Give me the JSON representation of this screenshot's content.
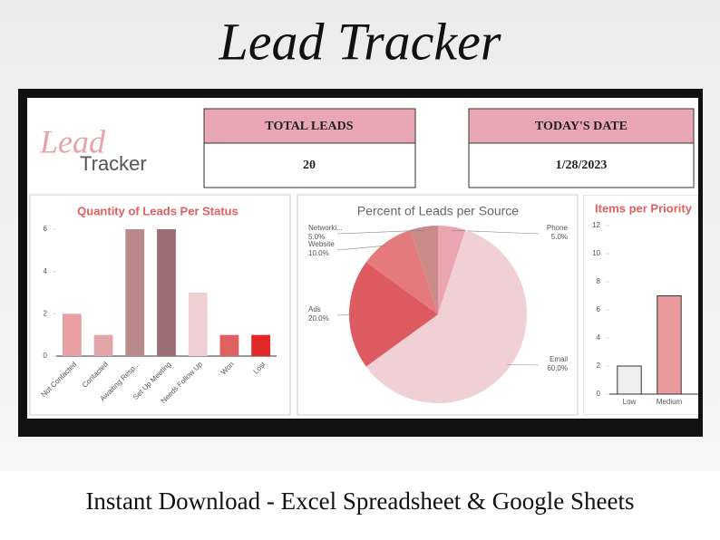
{
  "header": {
    "title": "Lead Tracker",
    "logo_script": "Lead",
    "logo_word": "Tracker"
  },
  "cards": [
    {
      "label": "TOTAL LEADS",
      "value": 20
    },
    {
      "label": "TODAY'S DATE",
      "value": "1/28/2023"
    }
  ],
  "footer": "Instant Download - Excel Spreadsheet & Google Sheets",
  "chart_data": [
    {
      "type": "bar",
      "title": "Quantity of Leads Per Status",
      "categories": [
        "Not Contacted",
        "Contacted",
        "Awaiting Resp...",
        "Set Up Meeting",
        "Needs Follow Up",
        "Won",
        "Lost"
      ],
      "values": [
        2,
        1,
        6,
        6,
        3,
        1,
        1
      ],
      "colors": [
        "#e8a0a4",
        "#e0a6a8",
        "#b88a8a",
        "#9a6e72",
        "#f0cfd2",
        "#e06060",
        "#e02828"
      ],
      "ylim": [
        0,
        6
      ],
      "yticks": [
        0,
        2,
        4,
        6
      ]
    },
    {
      "type": "pie",
      "title": "Percent of Leads per Source",
      "categories": [
        "Phone",
        "Email",
        "Ads",
        "Website",
        "Networki..."
      ],
      "values": [
        5,
        60,
        20,
        10,
        5
      ],
      "value_labels": [
        "5.0%",
        "60.0%",
        "20.0%",
        "10.0%",
        "5.0%"
      ],
      "colors": [
        "#eaa5b0",
        "#f0cfd5",
        "#dc5a60",
        "#e57a7c",
        "#c98a8a"
      ]
    },
    {
      "type": "bar",
      "title": "Items per Priority",
      "categories": [
        "Low",
        "Medium"
      ],
      "values": [
        2,
        7
      ],
      "colors": [
        "#eeeeee",
        "#e89a9c"
      ],
      "ylim": [
        0,
        12
      ],
      "yticks": [
        0,
        2,
        4,
        6,
        8,
        10,
        12
      ]
    }
  ]
}
